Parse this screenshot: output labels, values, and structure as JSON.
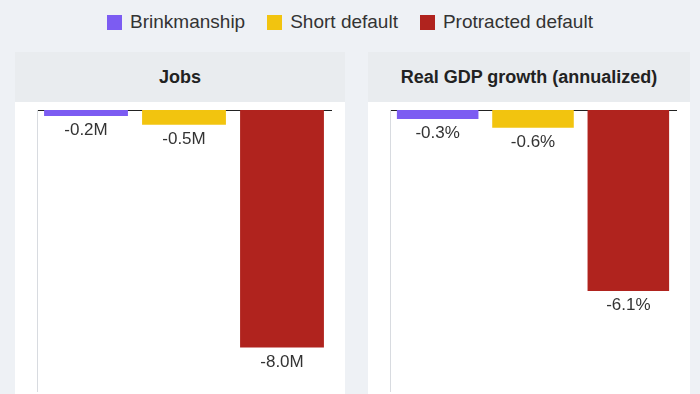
{
  "chart_data": [
    {
      "type": "bar",
      "title": "Jobs",
      "categories": [
        "Brinkmanship",
        "Short default",
        "Protracted default"
      ],
      "values": [
        -0.2,
        -0.5,
        -8.0
      ],
      "value_labels": [
        "-0.2M",
        "-0.5M",
        "-8.0M"
      ],
      "colors": [
        "#7c5cf2",
        "#f2c40f",
        "#b0231e"
      ],
      "ylim": [
        -9.5,
        0
      ],
      "data_labels": true,
      "tick_labels": false,
      "grid": false,
      "legend": "top"
    },
    {
      "type": "bar",
      "title": "Real GDP growth (annualized)",
      "categories": [
        "Brinkmanship",
        "Short default",
        "Protracted default"
      ],
      "values": [
        -0.3,
        -0.6,
        -6.1
      ],
      "value_labels": [
        "-0.3%",
        "-0.6%",
        "-6.1%"
      ],
      "colors": [
        "#7c5cf2",
        "#f2c40f",
        "#b0231e"
      ],
      "ylim": [
        -9.5,
        0
      ],
      "data_labels": true,
      "tick_labels": false,
      "grid": false
    }
  ]
}
